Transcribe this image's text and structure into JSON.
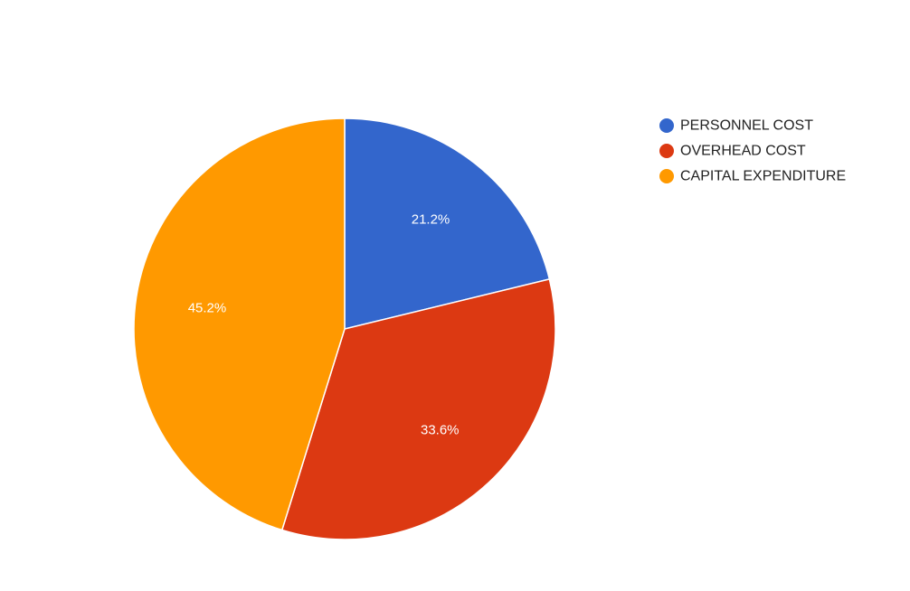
{
  "chart_data": {
    "type": "pie",
    "title": "",
    "legend_position": "right",
    "categories": [
      "PERSONNEL COST",
      "OVERHEAD COST",
      "CAPITAL EXPENDITURE"
    ],
    "values": [
      21.2,
      33.6,
      45.2
    ],
    "value_labels": [
      "21.2%",
      "33.6%",
      "45.2%"
    ],
    "colors": [
      "#3366cc",
      "#dc3912",
      "#ff9900"
    ],
    "start_angle": "12 o'clock",
    "direction": "clockwise"
  }
}
